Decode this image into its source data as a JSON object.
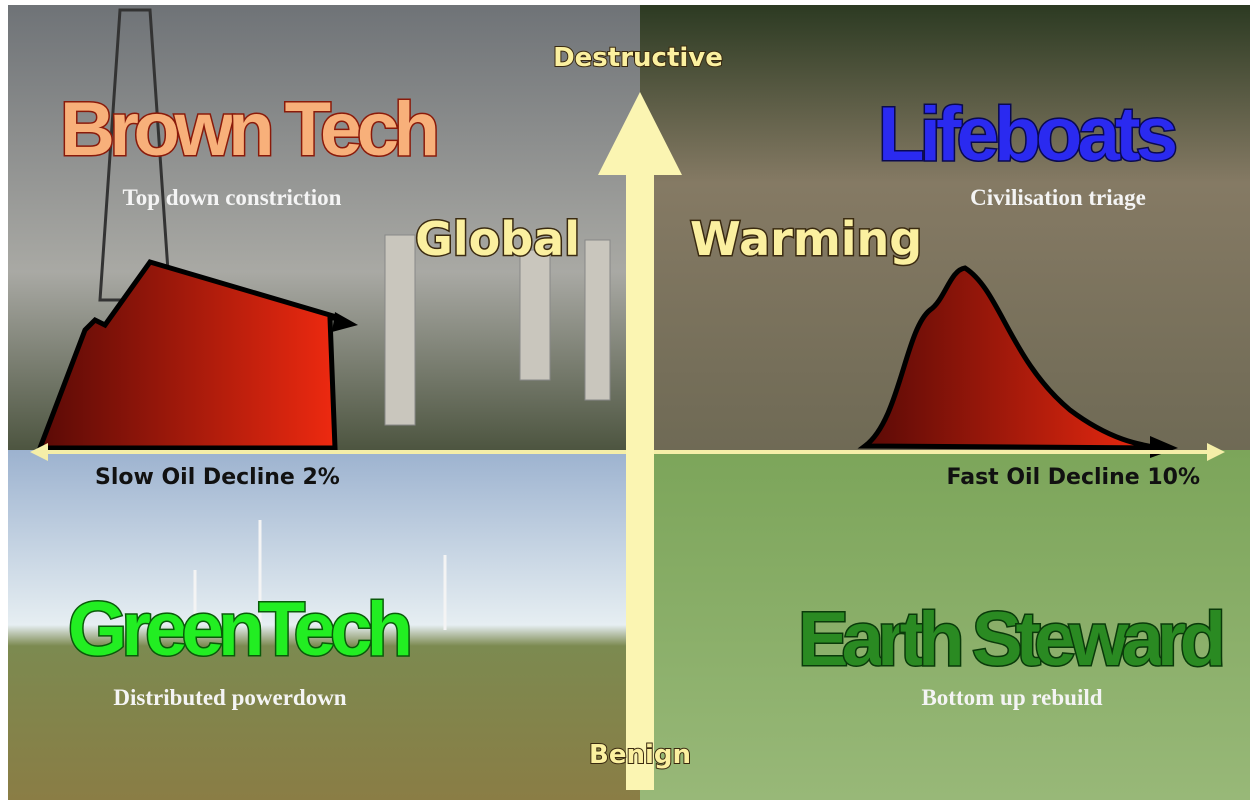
{
  "axes": {
    "top": "Destructive",
    "bottom": "Benign",
    "left": "Slow Oil Decline 2%",
    "right": "Fast Oil Decline 10%"
  },
  "center": {
    "left": "Global",
    "right": "Warming"
  },
  "quadrants": [
    {
      "title": "Brown Tech",
      "subtitle": "Top down constriction"
    },
    {
      "title": "Lifeboats",
      "subtitle": "Civilisation triage"
    },
    {
      "title": "GreenTech",
      "subtitle": "Distributed powerdown"
    },
    {
      "title": "Earth Steward",
      "subtitle": "Bottom up rebuild"
    }
  ]
}
